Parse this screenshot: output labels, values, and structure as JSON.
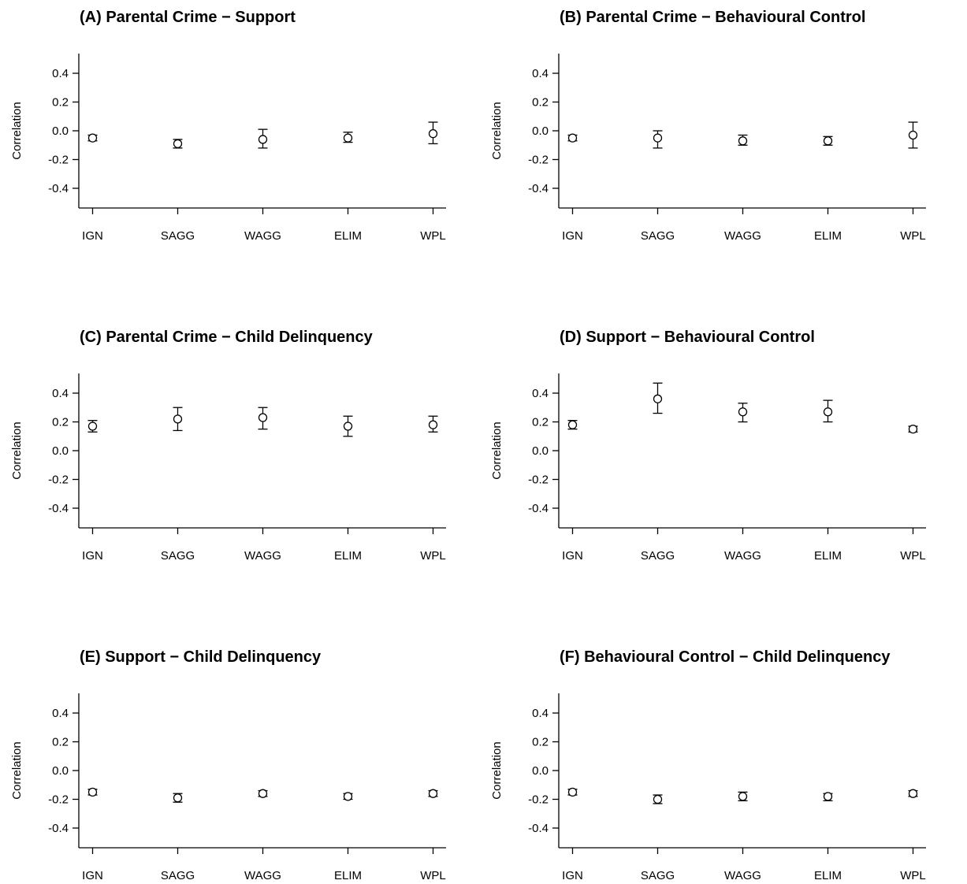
{
  "chart_data": [
    {
      "type": "scatter",
      "title": "(A) Parental Crime − Support",
      "ylabel": "Correlation",
      "categories": [
        "IGN",
        "SAGG",
        "WAGG",
        "ELIM",
        "WPL"
      ],
      "y_ticks": [
        0.4,
        0.2,
        0.0,
        -0.2,
        -0.4
      ],
      "ylim": [
        -0.53,
        0.53
      ],
      "estimate": [
        -0.05,
        -0.09,
        -0.06,
        -0.05,
        -0.02
      ],
      "lower": [
        -0.07,
        -0.12,
        -0.12,
        -0.08,
        -0.09
      ],
      "upper": [
        -0.03,
        -0.06,
        0.01,
        -0.01,
        0.06
      ]
    },
    {
      "type": "scatter",
      "title": "(B) Parental Crime − Behavioural Control",
      "ylabel": "Correlation",
      "categories": [
        "IGN",
        "SAGG",
        "WAGG",
        "ELIM",
        "WPL"
      ],
      "y_ticks": [
        0.4,
        0.2,
        0.0,
        -0.2,
        -0.4
      ],
      "ylim": [
        -0.53,
        0.53
      ],
      "estimate": [
        -0.05,
        -0.05,
        -0.07,
        -0.07,
        -0.03
      ],
      "lower": [
        -0.07,
        -0.12,
        -0.1,
        -0.1,
        -0.12
      ],
      "upper": [
        -0.03,
        0.0,
        -0.03,
        -0.04,
        0.06
      ]
    },
    {
      "type": "scatter",
      "title": "(C) Parental Crime − Child Delinquency",
      "ylabel": "Correlation",
      "categories": [
        "IGN",
        "SAGG",
        "WAGG",
        "ELIM",
        "WPL"
      ],
      "y_ticks": [
        0.4,
        0.2,
        0.0,
        -0.2,
        -0.4
      ],
      "ylim": [
        -0.53,
        0.53
      ],
      "estimate": [
        0.17,
        0.22,
        0.23,
        0.17,
        0.18
      ],
      "lower": [
        0.13,
        0.14,
        0.15,
        0.1,
        0.13
      ],
      "upper": [
        0.21,
        0.3,
        0.3,
        0.24,
        0.24
      ]
    },
    {
      "type": "scatter",
      "title": "(D) Support − Behavioural Control",
      "ylabel": "Correlation",
      "categories": [
        "IGN",
        "SAGG",
        "WAGG",
        "ELIM",
        "WPL"
      ],
      "y_ticks": [
        0.4,
        0.2,
        0.0,
        -0.2,
        -0.4
      ],
      "ylim": [
        -0.53,
        0.53
      ],
      "estimate": [
        0.18,
        0.36,
        0.27,
        0.27,
        0.15
      ],
      "lower": [
        0.15,
        0.26,
        0.2,
        0.2,
        0.13
      ],
      "upper": [
        0.21,
        0.47,
        0.33,
        0.35,
        0.17
      ]
    },
    {
      "type": "scatter",
      "title": "(E) Support − Child Delinquency",
      "ylabel": "Correlation",
      "categories": [
        "IGN",
        "SAGG",
        "WAGG",
        "ELIM",
        "WPL"
      ],
      "y_ticks": [
        0.4,
        0.2,
        0.0,
        -0.2,
        -0.4
      ],
      "ylim": [
        -0.53,
        0.53
      ],
      "estimate": [
        -0.15,
        -0.19,
        -0.16,
        -0.18,
        -0.16
      ],
      "lower": [
        -0.17,
        -0.22,
        -0.18,
        -0.2,
        -0.18
      ],
      "upper": [
        -0.13,
        -0.16,
        -0.14,
        -0.16,
        -0.14
      ]
    },
    {
      "type": "scatter",
      "title": "(F) Behavioural Control − Child Delinquency",
      "ylabel": "Correlation",
      "categories": [
        "IGN",
        "SAGG",
        "WAGG",
        "ELIM",
        "WPL"
      ],
      "y_ticks": [
        0.4,
        0.2,
        0.0,
        -0.2,
        -0.4
      ],
      "ylim": [
        -0.53,
        0.53
      ],
      "estimate": [
        -0.15,
        -0.2,
        -0.18,
        -0.18,
        -0.16
      ],
      "lower": [
        -0.17,
        -0.23,
        -0.21,
        -0.21,
        -0.18
      ],
      "upper": [
        -0.13,
        -0.17,
        -0.15,
        -0.16,
        -0.14
      ]
    }
  ]
}
